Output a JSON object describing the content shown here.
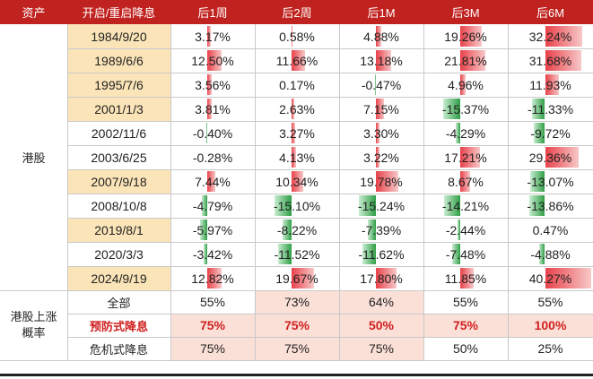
{
  "colors": {
    "header_bg": "#c0221f",
    "date_hl": "#fbe5b8",
    "row_pink": "#fbe0d8",
    "pos_bar": "#e8414a",
    "neg_bar": "#2f9e46",
    "red_text": "#d11f1f"
  },
  "headers": [
    "资产",
    "开启/重启降息",
    "后1周",
    "后2周",
    "后1M",
    "后3M",
    "后6M"
  ],
  "group_label_hk": "港股",
  "group_label_prob": "港股上涨概率",
  "rows": [
    {
      "date": "1984/9/20",
      "hl": true,
      "values": [
        "3.17%",
        "0.58%",
        "4.88%",
        "19.26%",
        "32.24%"
      ],
      "nums": [
        3.17,
        0.58,
        4.88,
        19.26,
        32.24
      ]
    },
    {
      "date": "1989/6/6",
      "hl": true,
      "values": [
        "12.50%",
        "11.66%",
        "13.18%",
        "21.81%",
        "31.68%"
      ],
      "nums": [
        12.5,
        11.66,
        13.18,
        21.81,
        31.68
      ]
    },
    {
      "date": "1995/7/6",
      "hl": true,
      "values": [
        "3.56%",
        "0.17%",
        "-0.47%",
        "4.96%",
        "11.93%"
      ],
      "nums": [
        3.56,
        0.17,
        -0.47,
        4.96,
        11.93
      ]
    },
    {
      "date": "2001/1/3",
      "hl": true,
      "values": [
        "3.81%",
        "2.63%",
        "7.15%",
        "-15.37%",
        "-11.33%"
      ],
      "nums": [
        3.81,
        2.63,
        7.15,
        -15.37,
        -11.33
      ]
    },
    {
      "date": "2002/11/6",
      "hl": false,
      "values": [
        "-0.40%",
        "3.27%",
        "3.30%",
        "-4.29%",
        "-9.72%"
      ],
      "nums": [
        -0.4,
        3.27,
        3.3,
        -4.29,
        -9.72
      ]
    },
    {
      "date": "2003/6/25",
      "hl": false,
      "values": [
        "-0.28%",
        "4.13%",
        "3.22%",
        "17.21%",
        "29.36%"
      ],
      "nums": [
        -0.28,
        4.13,
        3.22,
        17.21,
        29.36
      ]
    },
    {
      "date": "2007/9/18",
      "hl": true,
      "values": [
        "7.44%",
        "10.34%",
        "19.78%",
        "8.67%",
        "-13.07%"
      ],
      "nums": [
        7.44,
        10.34,
        19.78,
        8.67,
        -13.07
      ]
    },
    {
      "date": "2008/10/8",
      "hl": false,
      "values": [
        "-4.79%",
        "-15.10%",
        "-15.24%",
        "-14.21%",
        "-13.86%"
      ],
      "nums": [
        -4.79,
        -15.1,
        -15.24,
        -14.21,
        -13.86
      ]
    },
    {
      "date": "2019/8/1",
      "hl": true,
      "values": [
        "-5.97%",
        "-8.22%",
        "-7.39%",
        "-2.44%",
        "0.47%"
      ],
      "nums": [
        -5.97,
        -8.22,
        -7.39,
        -2.44,
        0.47
      ]
    },
    {
      "date": "2020/3/3",
      "hl": false,
      "values": [
        "-3.42%",
        "-11.52%",
        "-11.62%",
        "-7.48%",
        "-4.88%"
      ],
      "nums": [
        -3.42,
        -11.52,
        -11.62,
        -7.48,
        -4.88
      ]
    },
    {
      "date": "2024/9/19",
      "hl": true,
      "values": [
        "12.82%",
        "19.67%",
        "17.80%",
        "11.85%",
        "40.27%"
      ],
      "nums": [
        12.82,
        19.67,
        17.8,
        11.85,
        40.27
      ]
    }
  ],
  "prob_rows": [
    {
      "label": "全部",
      "red": false,
      "values": [
        "55%",
        "73%",
        "64%",
        "55%",
        "55%"
      ],
      "pink": [
        false,
        true,
        true,
        false,
        false
      ]
    },
    {
      "label": "预防式降息",
      "red": true,
      "values": [
        "75%",
        "75%",
        "50%",
        "75%",
        "100%"
      ],
      "pink": [
        true,
        true,
        true,
        true,
        true
      ]
    },
    {
      "label": "危机式降息",
      "red": false,
      "values": [
        "75%",
        "75%",
        "75%",
        "50%",
        "25%"
      ],
      "pink": [
        true,
        true,
        true,
        false,
        false
      ]
    }
  ]
}
